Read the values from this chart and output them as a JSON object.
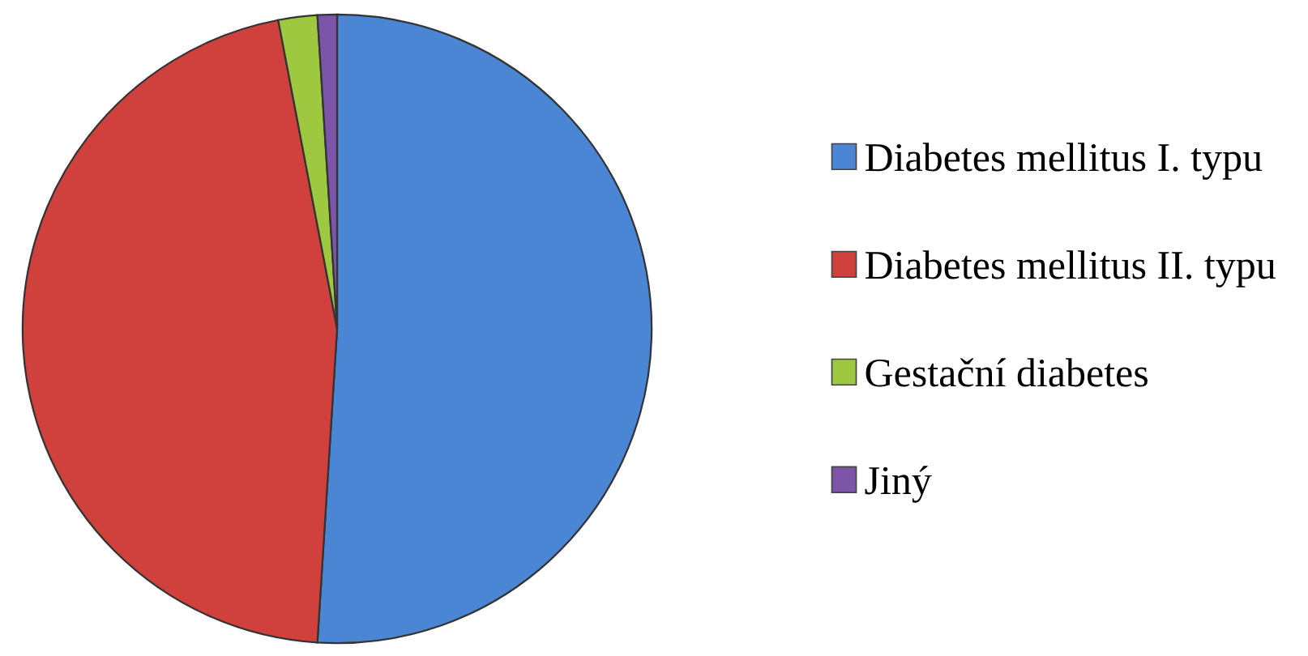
{
  "chart_data": {
    "type": "pie",
    "categories": [
      "Diabetes mellitus I. typu",
      "Diabetes mellitus II. typu",
      "Gestační diabetes",
      "Jiný"
    ],
    "values": [
      51,
      46,
      2,
      1
    ],
    "colors": [
      "#4a86d4",
      "#d0403c",
      "#9dc83f",
      "#7d55a8"
    ],
    "legend": "right"
  }
}
